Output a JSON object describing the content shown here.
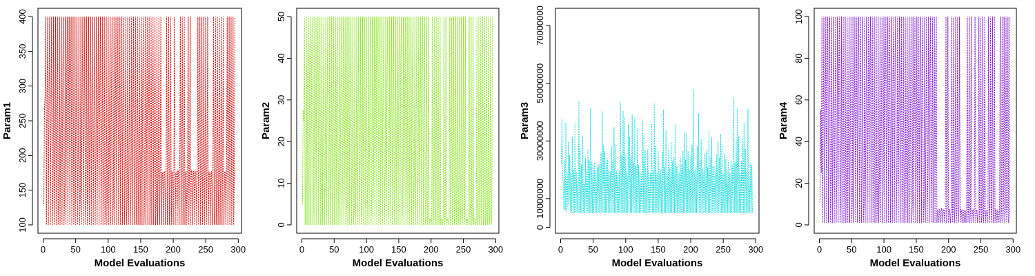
{
  "chart_data": [
    {
      "type": "line",
      "xlabel": "Model Evaluations",
      "ylabel": "Param1",
      "color": "#cc0000",
      "xlim": [
        -8,
        305
      ],
      "ylim": [
        88,
        412
      ],
      "xticks": [
        0,
        50,
        100,
        150,
        200,
        250,
        300
      ],
      "yticks": [
        100,
        150,
        200,
        250,
        300,
        350,
        400
      ],
      "ytick_labels": [
        "100",
        "150",
        "200",
        "250",
        "300",
        "350",
        "400"
      ],
      "n": 295,
      "lower": 100,
      "upper": 400,
      "seed": 11,
      "converge_start": 175,
      "converge_value": 177,
      "mid_levels": [
        250,
        287,
        200,
        137,
        176
      ]
    },
    {
      "type": "line",
      "xlabel": "Model Evaluations",
      "ylabel": "Param2",
      "color": "#80e010",
      "xlim": [
        -8,
        305
      ],
      "ylim": [
        -2,
        52
      ],
      "xticks": [
        0,
        50,
        100,
        150,
        200,
        250,
        300
      ],
      "yticks": [
        0,
        10,
        20,
        30,
        40,
        50
      ],
      "ytick_labels": [
        "0",
        "10",
        "20",
        "30",
        "40",
        "50"
      ],
      "n": 295,
      "lower": 0,
      "upper": 50,
      "seed": 23,
      "converge_start": 190,
      "converge_value": 1.5,
      "mid_levels": [
        25,
        12,
        37,
        4
      ]
    },
    {
      "type": "line",
      "xlabel": "Model Evaluations",
      "ylabel": "Param3",
      "color": "#20dcdc",
      "xlim": [
        -8,
        305
      ],
      "ylim": [
        -2000000,
        76000000
      ],
      "xticks": [
        0,
        50,
        100,
        150,
        200,
        250,
        300
      ],
      "yticks": [
        0,
        10000000,
        30000000,
        50000000,
        70000000
      ],
      "ytick_labels": [
        "0",
        "10000000",
        "30000000",
        "50000000",
        "70000000"
      ],
      "n": 295,
      "lower": 5000000,
      "upper": 73000000,
      "seed": 37,
      "converge_start": 40,
      "converge_value": 5000000,
      "spiky": true
    },
    {
      "type": "line",
      "xlabel": "Model Evaluations",
      "ylabel": "Param4",
      "color": "#7b10c8",
      "xlim": [
        -8,
        305
      ],
      "ylim": [
        -4,
        104
      ],
      "xticks": [
        0,
        50,
        100,
        150,
        200,
        250,
        300
      ],
      "yticks": [
        0,
        20,
        40,
        60,
        80,
        100
      ],
      "ytick_labels": [
        "0",
        "20",
        "40",
        "60",
        "80",
        "100"
      ],
      "n": 295,
      "lower": 1,
      "upper": 100,
      "seed": 53,
      "converge_start": 180,
      "converge_value": 7,
      "mid_levels": [
        50,
        25,
        75,
        10
      ]
    }
  ]
}
